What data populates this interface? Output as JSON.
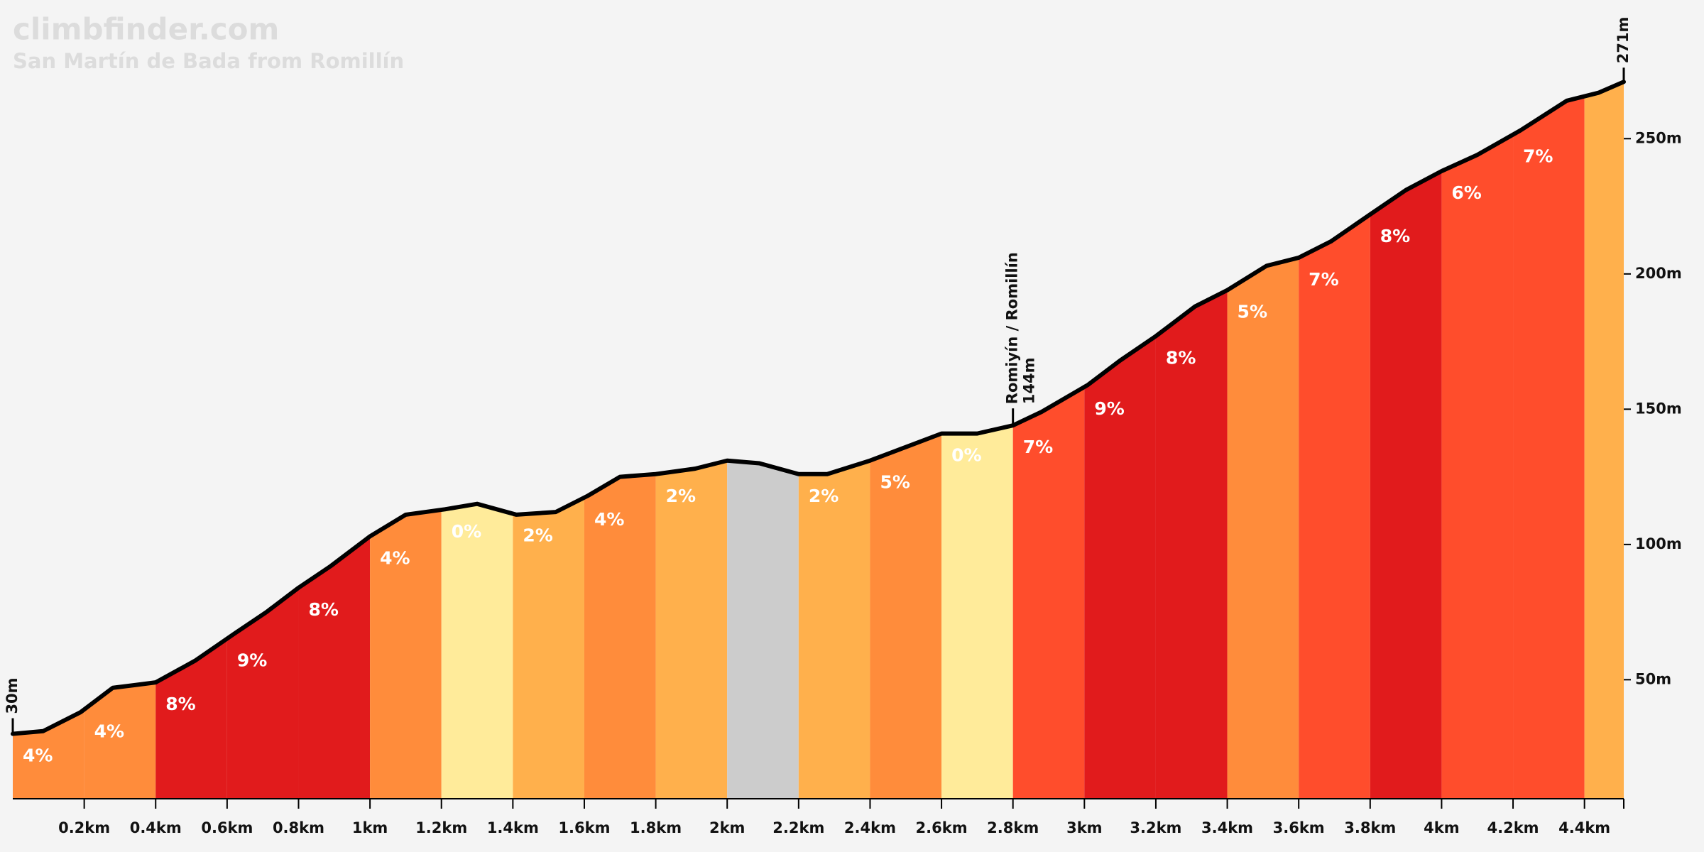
{
  "chart_data": {
    "type": "profile",
    "title": "climbfinder.com",
    "subtitle": "San Martín de Bada from Romillín",
    "x": [
      0,
      0.085,
      0.19,
      0.28,
      0.34,
      0.4,
      0.51,
      0.62,
      0.71,
      0.8,
      0.89,
      1.0,
      1.1,
      1.21,
      1.3,
      1.41,
      1.52,
      1.61,
      1.7,
      1.8,
      1.91,
      2.0,
      2.09,
      2.2,
      2.28,
      2.4,
      2.5,
      2.6,
      2.7,
      2.8,
      2.88,
      3.01,
      3.1,
      3.2,
      3.31,
      3.4,
      3.51,
      3.6,
      3.69,
      3.8,
      3.9,
      4.0,
      4.1,
      4.22,
      4.35,
      4.44,
      4.51
    ],
    "values": [
      30,
      31,
      38,
      47,
      48,
      49,
      57,
      67,
      75,
      84,
      92,
      103,
      111,
      113,
      115,
      111,
      112,
      118,
      125,
      126,
      128,
      131,
      130,
      126,
      126,
      131,
      136,
      141,
      141,
      144,
      149,
      159,
      168,
      177,
      188,
      194,
      203,
      206,
      212,
      222,
      231,
      238,
      244,
      253,
      264,
      267,
      271
    ],
    "xlim": [
      0,
      4.51
    ],
    "ylim": [
      6,
      280
    ],
    "xticks": [
      {
        "value": 0.2,
        "label": "0.2km"
      },
      {
        "value": 0.4,
        "label": "0.4km"
      },
      {
        "value": 0.6,
        "label": "0.6km"
      },
      {
        "value": 0.8,
        "label": "0.8km"
      },
      {
        "value": 1,
        "label": "1km"
      },
      {
        "value": 1.2,
        "label": "1.2km"
      },
      {
        "value": 1.4,
        "label": "1.4km"
      },
      {
        "value": 1.6,
        "label": "1.6km"
      },
      {
        "value": 1.8,
        "label": "1.8km"
      },
      {
        "value": 2,
        "label": "2km"
      },
      {
        "value": 2.2,
        "label": "2.2km"
      },
      {
        "value": 2.4,
        "label": "2.4km"
      },
      {
        "value": 2.6,
        "label": "2.6km"
      },
      {
        "value": 2.8,
        "label": "2.8km"
      },
      {
        "value": 3,
        "label": "3km"
      },
      {
        "value": 3.2,
        "label": "3.2km"
      },
      {
        "value": 3.4,
        "label": "3.4km"
      },
      {
        "value": 3.6,
        "label": "3.6km"
      },
      {
        "value": 3.8,
        "label": "3.8km"
      },
      {
        "value": 4,
        "label": "4km"
      },
      {
        "value": 4.2,
        "label": "4.2km"
      },
      {
        "value": 4.4,
        "label": "4.4km"
      }
    ],
    "yticks": [
      {
        "value": 50,
        "label": "50m"
      },
      {
        "value": 100,
        "label": "100m"
      },
      {
        "value": 150,
        "label": "150m"
      },
      {
        "value": 200,
        "label": "200m"
      },
      {
        "value": 250,
        "label": "250m"
      }
    ],
    "segments": {
      "bins": [
        0,
        0.2,
        0.4,
        0.6,
        0.8,
        1.0,
        1.2,
        1.4,
        1.6,
        1.8,
        2.0,
        2.2,
        2.4,
        2.6,
        2.8,
        3.0,
        3.2,
        3.4,
        3.6,
        3.8,
        4.0,
        4.2,
        4.4,
        4.51
      ],
      "values": [
        4,
        4,
        8,
        9,
        8,
        4,
        0,
        2,
        4,
        2,
        null,
        2,
        5,
        0,
        7,
        9,
        8,
        5,
        7,
        8,
        6,
        7,
        null
      ],
      "value_labels": [
        "4%",
        "4%",
        "8%",
        "9%",
        "8%",
        "4%",
        "0%",
        "2%",
        "4%",
        "2%",
        null,
        "2%",
        "5%",
        "0%",
        "7%",
        "9%",
        "8%",
        "5%",
        "7%",
        "8%",
        "6%",
        "7%",
        null
      ],
      "colors": [
        "#ff8c3b",
        "#ff8c3b",
        "#e11b1c",
        "#e11b1c",
        "#e11b1c",
        "#ff8c3b",
        "#ffeb9a",
        "#ffb04c",
        "#ff8c3b",
        "#ffb04c",
        "#cccccc",
        "#ffb04c",
        "#ff8c3b",
        "#ffeb9a",
        "#ff4d2c",
        "#e11b1c",
        "#e11b1c",
        "#ff8c3b",
        "#ff4d2c",
        "#e11b1c",
        "#ff4d2c",
        "#ff4d2c",
        "#ffb04c"
      ]
    },
    "start_label": {
      "value": 30,
      "label": "30m"
    },
    "end_label": {
      "value": 271,
      "label": "271m"
    },
    "annotations": [
      {
        "x": 2.8,
        "name": "Romiyín / Romillín",
        "value": 144,
        "label": "144m"
      }
    ]
  }
}
